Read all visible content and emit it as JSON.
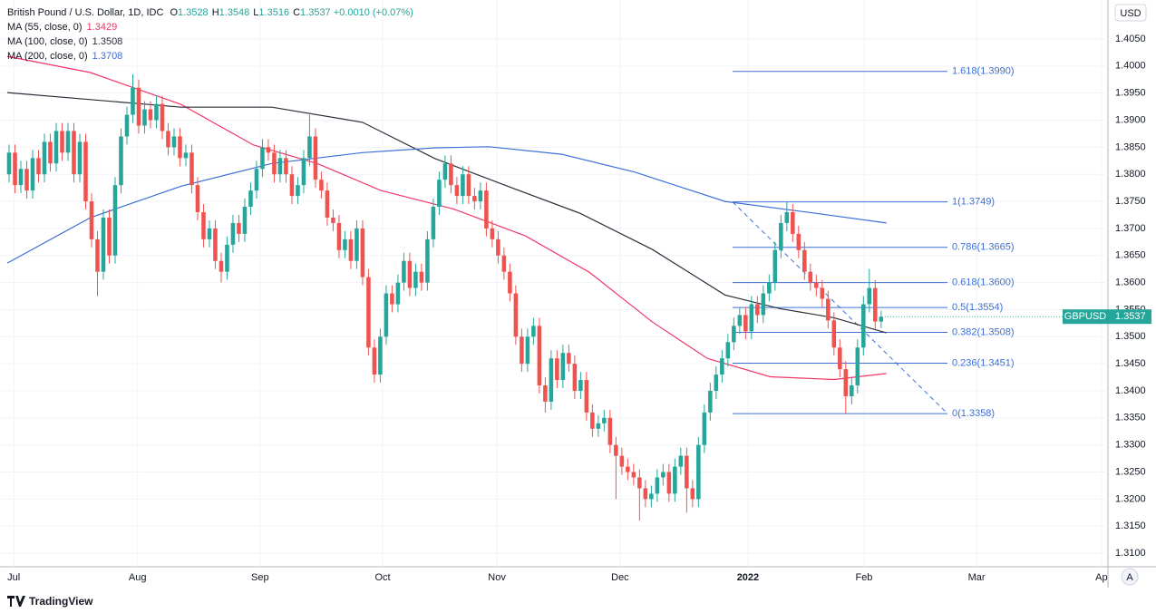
{
  "chart_data": {
    "type": "candlestick",
    "header": {
      "title": "British Pound / U.S. Dollar, 1D, IDC",
      "ohlc": [
        {
          "label": "O",
          "value": "1.3528"
        },
        {
          "label": "H",
          "value": "1.3548"
        },
        {
          "label": "L",
          "value": "1.3516"
        },
        {
          "label": "C",
          "value": "1.3537"
        }
      ],
      "change": "+0.0010 (+0.07%)"
    },
    "symbol": "GBPUSD",
    "currency": "USD",
    "up_color": "#26a69a",
    "down_color": "#ef5350",
    "grid": true,
    "xlim": [
      -1.54,
      186.5
    ],
    "xticks": [
      {
        "value": 0.8,
        "label": "Jul"
      },
      {
        "value": 21.8,
        "label": "Aug"
      },
      {
        "value": 42.6,
        "label": "Sep"
      },
      {
        "value": 63.4,
        "label": "Oct"
      },
      {
        "value": 82.8,
        "label": "Nov"
      },
      {
        "value": 103.7,
        "label": "Dec"
      },
      {
        "value": 125.4,
        "label": "2022"
      },
      {
        "value": 145.1,
        "label": "Feb"
      },
      {
        "value": 164.2,
        "label": "Mar"
      },
      {
        "value": 185.4,
        "label": "Ap"
      }
    ],
    "ylim": [
      1.3075,
      1.4122
    ],
    "yticks": [
      {
        "value": 1.405,
        "label": "1.4050"
      },
      {
        "value": 1.4,
        "label": "1.4000"
      },
      {
        "value": 1.395,
        "label": "1.3950"
      },
      {
        "value": 1.39,
        "label": "1.3900"
      },
      {
        "value": 1.385,
        "label": "1.3850"
      },
      {
        "value": 1.38,
        "label": "1.3800"
      },
      {
        "value": 1.375,
        "label": "1.3750"
      },
      {
        "value": 1.37,
        "label": "1.3700"
      },
      {
        "value": 1.365,
        "label": "1.3650"
      },
      {
        "value": 1.36,
        "label": "1.3600"
      },
      {
        "value": 1.355,
        "label": "1.3550"
      },
      {
        "value": 1.35,
        "label": "1.3500"
      },
      {
        "value": 1.345,
        "label": "1.3450"
      },
      {
        "value": 1.34,
        "label": "1.3400"
      },
      {
        "value": 1.335,
        "label": "1.3350"
      },
      {
        "value": 1.33,
        "label": "1.3300"
      },
      {
        "value": 1.325,
        "label": "1.3250"
      },
      {
        "value": 1.32,
        "label": "1.3200"
      },
      {
        "value": 1.315,
        "label": "1.3150"
      },
      {
        "value": 1.31,
        "label": "1.3100"
      }
    ],
    "ohlc": [
      [
        1.38,
        1.3855,
        1.3785,
        1.384
      ],
      [
        1.384,
        1.3855,
        1.3765,
        1.378
      ],
      [
        1.378,
        1.3825,
        1.3765,
        1.381
      ],
      [
        1.381,
        1.3825,
        1.3755,
        1.377
      ],
      [
        1.377,
        1.3845,
        1.3755,
        1.383
      ],
      [
        1.383,
        1.3845,
        1.3785,
        1.38
      ],
      [
        1.38,
        1.3875,
        1.3785,
        1.386
      ],
      [
        1.386,
        1.3875,
        1.3805,
        1.382
      ],
      [
        1.382,
        1.3895,
        1.3805,
        1.388
      ],
      [
        1.388,
        1.3895,
        1.3825,
        1.384
      ],
      [
        1.384,
        1.3895,
        1.3825,
        1.388
      ],
      [
        1.388,
        1.3895,
        1.3785,
        1.38
      ],
      [
        1.38,
        1.3875,
        1.3785,
        1.386
      ],
      [
        1.386,
        1.3875,
        1.3735,
        1.375
      ],
      [
        1.375,
        1.3765,
        1.3665,
        1.368
      ],
      [
        1.368,
        1.3695,
        1.3575,
        1.362
      ],
      [
        1.362,
        1.3735,
        1.3605,
        1.372
      ],
      [
        1.372,
        1.3735,
        1.3635,
        1.365
      ],
      [
        1.365,
        1.3795,
        1.3635,
        1.378
      ],
      [
        1.378,
        1.3885,
        1.3765,
        1.387
      ],
      [
        1.387,
        1.3925,
        1.3855,
        1.391
      ],
      [
        1.391,
        1.3985,
        1.3895,
        1.396
      ],
      [
        1.396,
        1.3975,
        1.3875,
        1.389
      ],
      [
        1.389,
        1.3935,
        1.3875,
        1.392
      ],
      [
        1.392,
        1.3935,
        1.3885,
        1.39
      ],
      [
        1.39,
        1.3945,
        1.3885,
        1.393
      ],
      [
        1.393,
        1.3945,
        1.3865,
        1.388
      ],
      [
        1.388,
        1.3895,
        1.3835,
        1.385
      ],
      [
        1.385,
        1.3885,
        1.3835,
        1.387
      ],
      [
        1.387,
        1.3885,
        1.3815,
        1.383
      ],
      [
        1.383,
        1.3855,
        1.3815,
        1.384
      ],
      [
        1.384,
        1.3855,
        1.3765,
        1.378
      ],
      [
        1.378,
        1.3795,
        1.3715,
        1.373
      ],
      [
        1.373,
        1.3745,
        1.3665,
        1.368
      ],
      [
        1.368,
        1.3715,
        1.3665,
        1.37
      ],
      [
        1.37,
        1.3715,
        1.3625,
        1.364
      ],
      [
        1.364,
        1.3655,
        1.36,
        1.362
      ],
      [
        1.362,
        1.3685,
        1.3605,
        1.367
      ],
      [
        1.367,
        1.3725,
        1.3655,
        1.371
      ],
      [
        1.371,
        1.3725,
        1.3675,
        1.369
      ],
      [
        1.369,
        1.3755,
        1.3675,
        1.374
      ],
      [
        1.374,
        1.3785,
        1.3725,
        1.377
      ],
      [
        1.377,
        1.3825,
        1.3755,
        1.381
      ],
      [
        1.381,
        1.3865,
        1.3795,
        1.385
      ],
      [
        1.385,
        1.3865,
        1.3825,
        1.384
      ],
      [
        1.384,
        1.3855,
        1.3785,
        1.38
      ],
      [
        1.38,
        1.3845,
        1.3785,
        1.383
      ],
      [
        1.383,
        1.3845,
        1.3785,
        1.38
      ],
      [
        1.38,
        1.3815,
        1.3745,
        1.376
      ],
      [
        1.376,
        1.3795,
        1.3745,
        1.378
      ],
      [
        1.378,
        1.3845,
        1.3765,
        1.383
      ],
      [
        1.383,
        1.391,
        1.3815,
        1.387
      ],
      [
        1.387,
        1.3885,
        1.3775,
        1.379
      ],
      [
        1.379,
        1.3805,
        1.3755,
        1.377
      ],
      [
        1.377,
        1.3785,
        1.3705,
        1.372
      ],
      [
        1.372,
        1.3735,
        1.3695,
        1.371
      ],
      [
        1.371,
        1.3725,
        1.3645,
        1.366
      ],
      [
        1.366,
        1.3695,
        1.3645,
        1.368
      ],
      [
        1.368,
        1.3695,
        1.3625,
        1.364
      ],
      [
        1.364,
        1.3715,
        1.3625,
        1.37
      ],
      [
        1.37,
        1.3715,
        1.3595,
        1.361
      ],
      [
        1.361,
        1.3625,
        1.3465,
        1.348
      ],
      [
        1.348,
        1.3495,
        1.3415,
        1.343
      ],
      [
        1.343,
        1.3515,
        1.3415,
        1.35
      ],
      [
        1.35,
        1.3595,
        1.3485,
        1.358
      ],
      [
        1.358,
        1.3595,
        1.3545,
        1.356
      ],
      [
        1.356,
        1.3615,
        1.3545,
        1.36
      ],
      [
        1.36,
        1.3655,
        1.3585,
        1.364
      ],
      [
        1.364,
        1.3655,
        1.3575,
        1.359
      ],
      [
        1.359,
        1.3635,
        1.3575,
        1.362
      ],
      [
        1.362,
        1.3635,
        1.3585,
        1.36
      ],
      [
        1.36,
        1.3695,
        1.3585,
        1.368
      ],
      [
        1.368,
        1.3755,
        1.3665,
        1.374
      ],
      [
        1.374,
        1.3805,
        1.3725,
        1.379
      ],
      [
        1.379,
        1.3835,
        1.3775,
        1.382
      ],
      [
        1.382,
        1.3835,
        1.3765,
        1.378
      ],
      [
        1.378,
        1.3795,
        1.3745,
        1.376
      ],
      [
        1.376,
        1.3815,
        1.3745,
        1.38
      ],
      [
        1.38,
        1.3815,
        1.3745,
        1.376
      ],
      [
        1.376,
        1.3775,
        1.3735,
        1.375
      ],
      [
        1.375,
        1.3785,
        1.3735,
        1.377
      ],
      [
        1.377,
        1.3785,
        1.3685,
        1.37
      ],
      [
        1.37,
        1.3715,
        1.3665,
        1.368
      ],
      [
        1.368,
        1.3695,
        1.3635,
        1.365
      ],
      [
        1.365,
        1.3665,
        1.3605,
        1.362
      ],
      [
        1.362,
        1.3635,
        1.3565,
        1.358
      ],
      [
        1.358,
        1.3595,
        1.3485,
        1.35
      ],
      [
        1.35,
        1.3515,
        1.3435,
        1.345
      ],
      [
        1.345,
        1.3515,
        1.3435,
        1.35
      ],
      [
        1.35,
        1.3535,
        1.3485,
        1.352
      ],
      [
        1.352,
        1.3535,
        1.3395,
        1.341
      ],
      [
        1.341,
        1.3425,
        1.336,
        1.338
      ],
      [
        1.338,
        1.3475,
        1.3365,
        1.346
      ],
      [
        1.346,
        1.3475,
        1.3405,
        1.342
      ],
      [
        1.342,
        1.3485,
        1.3405,
        1.347
      ],
      [
        1.347,
        1.3485,
        1.3435,
        1.345
      ],
      [
        1.345,
        1.3465,
        1.3385,
        1.34
      ],
      [
        1.34,
        1.3435,
        1.3385,
        1.342
      ],
      [
        1.342,
        1.3435,
        1.3345,
        1.336
      ],
      [
        1.336,
        1.3375,
        1.3315,
        1.333
      ],
      [
        1.333,
        1.3355,
        1.3315,
        1.334
      ],
      [
        1.334,
        1.3365,
        1.3325,
        1.335
      ],
      [
        1.335,
        1.3365,
        1.3285,
        1.33
      ],
      [
        1.33,
        1.3315,
        1.32,
        1.328
      ],
      [
        1.328,
        1.3295,
        1.3245,
        1.326
      ],
      [
        1.326,
        1.3275,
        1.3235,
        1.325
      ],
      [
        1.325,
        1.3265,
        1.3225,
        1.324
      ],
      [
        1.324,
        1.3255,
        1.316,
        1.322
      ],
      [
        1.322,
        1.3235,
        1.3185,
        1.32
      ],
      [
        1.32,
        1.3225,
        1.3185,
        1.321
      ],
      [
        1.321,
        1.3255,
        1.3195,
        1.324
      ],
      [
        1.324,
        1.3265,
        1.3225,
        1.325
      ],
      [
        1.325,
        1.3265,
        1.3195,
        1.321
      ],
      [
        1.321,
        1.3275,
        1.3195,
        1.326
      ],
      [
        1.326,
        1.3295,
        1.3245,
        1.328
      ],
      [
        1.328,
        1.3295,
        1.3175,
        1.322
      ],
      [
        1.322,
        1.3235,
        1.3185,
        1.32
      ],
      [
        1.32,
        1.3315,
        1.3185,
        1.33
      ],
      [
        1.33,
        1.3375,
        1.3285,
        1.336
      ],
      [
        1.336,
        1.3415,
        1.3345,
        1.34
      ],
      [
        1.34,
        1.3445,
        1.3385,
        1.343
      ],
      [
        1.343,
        1.3475,
        1.3415,
        1.346
      ],
      [
        1.346,
        1.3505,
        1.3445,
        1.349
      ],
      [
        1.349,
        1.3535,
        1.3475,
        1.352
      ],
      [
        1.352,
        1.3555,
        1.3505,
        1.354
      ],
      [
        1.354,
        1.3555,
        1.3495,
        1.351
      ],
      [
        1.351,
        1.3575,
        1.3495,
        1.356
      ],
      [
        1.356,
        1.3575,
        1.3525,
        1.354
      ],
      [
        1.354,
        1.3595,
        1.3525,
        1.358
      ],
      [
        1.358,
        1.3615,
        1.3565,
        1.36
      ],
      [
        1.36,
        1.3675,
        1.3585,
        1.366
      ],
      [
        1.366,
        1.3725,
        1.3645,
        1.371
      ],
      [
        1.371,
        1.3749,
        1.3695,
        1.373
      ],
      [
        1.373,
        1.3745,
        1.3675,
        1.369
      ],
      [
        1.369,
        1.3705,
        1.3645,
        1.366
      ],
      [
        1.366,
        1.3675,
        1.3605,
        1.362
      ],
      [
        1.362,
        1.3635,
        1.3585,
        1.36
      ],
      [
        1.36,
        1.3615,
        1.3575,
        1.359
      ],
      [
        1.359,
        1.3605,
        1.3555,
        1.357
      ],
      [
        1.357,
        1.3585,
        1.3515,
        1.353
      ],
      [
        1.353,
        1.3545,
        1.3465,
        1.348
      ],
      [
        1.348,
        1.3495,
        1.3425,
        1.344
      ],
      [
        1.344,
        1.3455,
        1.3358,
        1.339
      ],
      [
        1.339,
        1.3425,
        1.3375,
        1.341
      ],
      [
        1.341,
        1.3495,
        1.3395,
        1.348
      ],
      [
        1.348,
        1.3575,
        1.3465,
        1.356
      ],
      [
        1.356,
        1.3625,
        1.3545,
        1.359
      ],
      [
        1.359,
        1.3605,
        1.3513,
        1.3528
      ],
      [
        1.3528,
        1.3548,
        1.3516,
        1.3537
      ]
    ],
    "series": [
      {
        "name": "MA (55, close, 0)",
        "last_value": "1.3429",
        "color": "#f23667",
        "x": [
          -0.3,
          13.8,
          29.2,
          41.5,
          52.3,
          63.1,
          75.4,
          87.7,
          98.5,
          109.2,
          118.5,
          129.2,
          140,
          148.9
        ],
        "values": [
          1.4018,
          1.3988,
          1.3929,
          1.3854,
          1.382,
          1.377,
          1.3736,
          1.3686,
          1.3619,
          1.3527,
          1.346,
          1.3426,
          1.3421,
          1.3432
        ]
      },
      {
        "name": "MA (100, close, 0)",
        "last_value": "1.3508",
        "color": "#2a2e39",
        "x": [
          -0.3,
          13.8,
          29.2,
          44.6,
          60,
          72.3,
          84.6,
          96.9,
          109.2,
          121.5,
          130.8,
          140,
          148.9
        ],
        "values": [
          1.3951,
          1.3938,
          1.3924,
          1.3924,
          1.3896,
          1.3829,
          1.3778,
          1.3728,
          1.3661,
          1.3577,
          1.3552,
          1.3535,
          1.3507
        ]
      },
      {
        "name": "MA (200, close, 0)",
        "last_value": "1.3708",
        "color": "#3d6fd6",
        "x": [
          -0.3,
          13.8,
          29.2,
          44.6,
          60,
          72.3,
          81.5,
          93.8,
          106.2,
          121.5,
          136.9,
          148.9
        ],
        "values": [
          1.3636,
          1.372,
          1.3778,
          1.382,
          1.384,
          1.3849,
          1.3851,
          1.3837,
          1.3804,
          1.375,
          1.3728,
          1.371
        ]
      }
    ],
    "fib_color": "#3d6fd6",
    "fib_levels": [
      {
        "label": "1.618(1.3990)",
        "value": 1.399
      },
      {
        "label": "1(1.3749)",
        "value": 1.3749
      },
      {
        "label": "0.786(1.3665)",
        "value": 1.3665
      },
      {
        "label": "0.618(1.3600)",
        "value": 1.36
      },
      {
        "label": "0.5(1.3554)",
        "value": 1.3554
      },
      {
        "label": "0.382(1.3508)",
        "value": 1.3508
      },
      {
        "label": "0.236(1.3451)",
        "value": 1.3451
      },
      {
        "label": "0(1.3358)",
        "value": 1.3358
      }
    ],
    "footer": "TradingView",
    "scale_button": "A"
  }
}
